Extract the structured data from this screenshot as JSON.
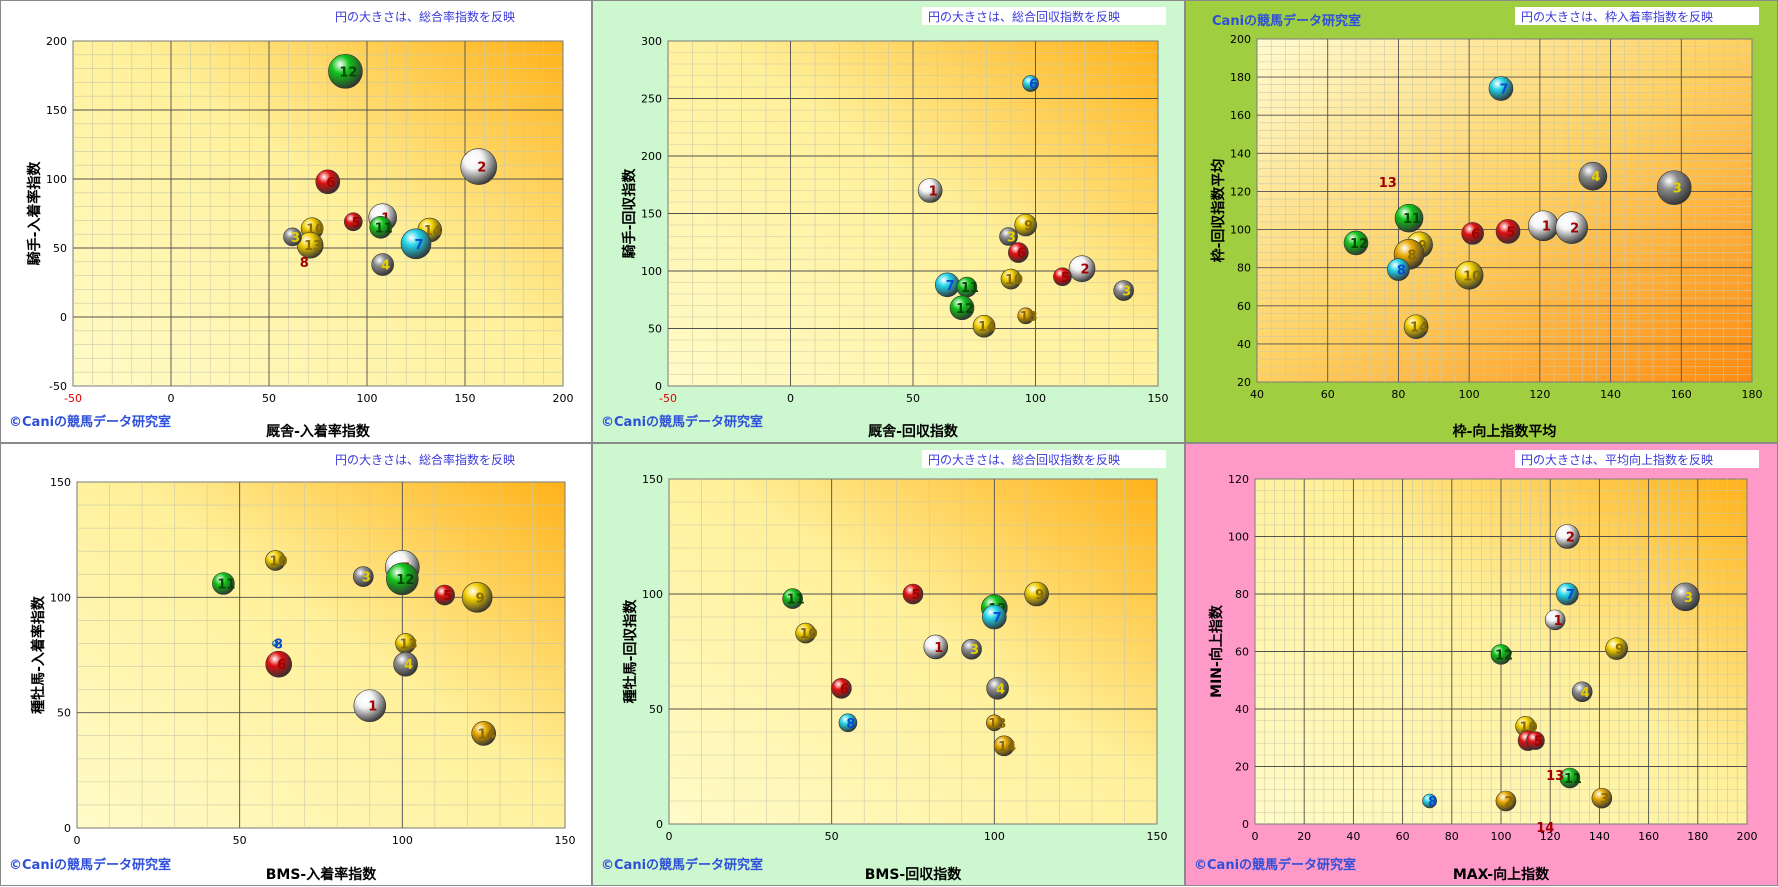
{
  "colors": {
    "red": "#e01010",
    "white": "#f4f4f4",
    "gray": "#8c8c8c",
    "yellow": "#f2cf00",
    "green": "#12c41a",
    "cyan": "#22d3e8",
    "gold": "#e8a800",
    "label_red": "#a00000",
    "label_yellow": "#7a6000",
    "label_white": "#a00000",
    "watermark": "#2e4fd8",
    "note": "#3a3ad8"
  },
  "chart_data": [
    {
      "type": "scatter",
      "title": "",
      "note": "円の大きさは、総合率指数を反映",
      "watermark": "©Caniの競馬データ研究室",
      "xlabel": "厩舎-入着率指数",
      "ylabel": "騎手-入着率指数",
      "xlim": [
        -50,
        200
      ],
      "ylim": [
        -50,
        200
      ],
      "xticks": [
        "-50",
        "0",
        "50",
        "100",
        "150",
        "200"
      ],
      "yticks": [
        "-50",
        "0",
        "50",
        "100",
        "150",
        "200"
      ],
      "grid": true,
      "points": [
        {
          "label": "12",
          "x": 89,
          "y": 178,
          "r": 17,
          "color": "green"
        },
        {
          "label": "2",
          "x": 157,
          "y": 109,
          "r": 18,
          "color": "white"
        },
        {
          "label": "6",
          "x": 80,
          "y": 98,
          "r": 12,
          "color": "red"
        },
        {
          "label": "1",
          "x": 108,
          "y": 72,
          "r": 14,
          "color": "white"
        },
        {
          "label": "5",
          "x": 93,
          "y": 69,
          "r": 9,
          "color": "red"
        },
        {
          "label": "11",
          "x": 107,
          "y": 65,
          "r": 11,
          "color": "green"
        },
        {
          "label": "14",
          "x": 132,
          "y": 63,
          "r": 12,
          "color": "yellow"
        },
        {
          "label": "7",
          "x": 125,
          "y": 53,
          "r": 15,
          "color": "cyan"
        },
        {
          "label": "10",
          "x": 72,
          "y": 64,
          "r": 11,
          "color": "yellow"
        },
        {
          "label": "13",
          "x": 71,
          "y": 52,
          "r": 13,
          "color": "yellow"
        },
        {
          "label": "3",
          "x": 62,
          "y": 58,
          "r": 9,
          "color": "gray"
        },
        {
          "label": "8",
          "x": 68,
          "y": 40,
          "r": 0,
          "color": "red"
        },
        {
          "label": "4",
          "x": 108,
          "y": 38,
          "r": 11,
          "color": "gray"
        }
      ]
    },
    {
      "type": "scatter",
      "title": "",
      "note": "円の大きさは、総合回収指数を反映",
      "watermark": "©Caniの競馬データ研究室",
      "xlabel": "厩舎-回収指数",
      "ylabel": "騎手-回収指数",
      "xlim": [
        -50,
        150
      ],
      "ylim": [
        0,
        300
      ],
      "xticks": [
        "-50",
        "0",
        "50",
        "100",
        "150"
      ],
      "yticks": [
        "0",
        "50",
        "100",
        "150",
        "200",
        "250",
        "300"
      ],
      "grid": true,
      "points": [
        {
          "label": "6",
          "x": 98,
          "y": 263,
          "r": 8,
          "color": "cyan"
        },
        {
          "label": "1",
          "x": 57,
          "y": 170,
          "r": 12,
          "color": "white"
        },
        {
          "label": "9",
          "x": 96,
          "y": 140,
          "r": 11,
          "color": "yellow"
        },
        {
          "label": "3",
          "x": 89,
          "y": 130,
          "r": 9,
          "color": "gray"
        },
        {
          "label": "6",
          "x": 93,
          "y": 116,
          "r": 10,
          "color": "red"
        },
        {
          "label": "2",
          "x": 119,
          "y": 102,
          "r": 13,
          "color": "white"
        },
        {
          "label": "5",
          "x": 111,
          "y": 95,
          "r": 9,
          "color": "red"
        },
        {
          "label": "10",
          "x": 90,
          "y": 93,
          "r": 10,
          "color": "yellow"
        },
        {
          "label": "3",
          "x": 136,
          "y": 83,
          "r": 10,
          "color": "gray"
        },
        {
          "label": "7",
          "x": 64,
          "y": 88,
          "r": 12,
          "color": "cyan"
        },
        {
          "label": "11",
          "x": 72,
          "y": 86,
          "r": 10,
          "color": "green"
        },
        {
          "label": "12",
          "x": 70,
          "y": 68,
          "r": 12,
          "color": "green"
        },
        {
          "label": "13",
          "x": 96,
          "y": 61,
          "r": 8,
          "color": "gold"
        },
        {
          "label": "14",
          "x": 79,
          "y": 52,
          "r": 11,
          "color": "yellow"
        }
      ]
    },
    {
      "type": "scatter",
      "title": "",
      "note": "円の大きさは、枠入着率指数を反映",
      "watermark": "Caniの競馬データ研究室",
      "xlabel": "枠-向上指数平均",
      "ylabel": "枠-回収指数平均",
      "xlim": [
        40,
        180
      ],
      "ylim": [
        20,
        200
      ],
      "xticks": [
        "40",
        "60",
        "80",
        "100",
        "120",
        "140",
        "160",
        "180"
      ],
      "yticks": [
        "20",
        "40",
        "60",
        "80",
        "100",
        "120",
        "140",
        "160",
        "180",
        "200"
      ],
      "grid": true,
      "points": [
        {
          "label": "7",
          "x": 109,
          "y": 174,
          "r": 12,
          "color": "cyan"
        },
        {
          "label": "4",
          "x": 135,
          "y": 128,
          "r": 14,
          "color": "gray"
        },
        {
          "label": "3",
          "x": 158,
          "y": 122,
          "r": 17,
          "color": "gray"
        },
        {
          "label": "13",
          "x": 77,
          "y": 125,
          "r": 0,
          "color": "red"
        },
        {
          "label": "11",
          "x": 83,
          "y": 106,
          "r": 14,
          "color": "green"
        },
        {
          "label": "1",
          "x": 121,
          "y": 102,
          "r": 15,
          "color": "white"
        },
        {
          "label": "2",
          "x": 129,
          "y": 101,
          "r": 16,
          "color": "white"
        },
        {
          "label": "5",
          "x": 111,
          "y": 99,
          "r": 12,
          "color": "red"
        },
        {
          "label": "6",
          "x": 101,
          "y": 98,
          "r": 11,
          "color": "red"
        },
        {
          "label": "12",
          "x": 68,
          "y": 93,
          "r": 12,
          "color": "green"
        },
        {
          "label": "9",
          "x": 86,
          "y": 92,
          "r": 13,
          "color": "yellow"
        },
        {
          "label": "8",
          "x": 83,
          "y": 87,
          "r": 15,
          "color": "gold"
        },
        {
          "label": "8",
          "x": 80,
          "y": 79,
          "r": 11,
          "color": "cyan"
        },
        {
          "label": "10",
          "x": 100,
          "y": 76,
          "r": 14,
          "color": "yellow"
        },
        {
          "label": "14",
          "x": 85,
          "y": 49,
          "r": 12,
          "color": "yellow"
        }
      ]
    },
    {
      "type": "scatter",
      "title": "",
      "note": "円の大きさは、総合率指数を反映",
      "watermark": "©Caniの競馬データ研究室",
      "xlabel": "BMS-入着率指数",
      "ylabel": "種牡馬-入着率指数",
      "xlim": [
        0,
        150
      ],
      "ylim": [
        0,
        150
      ],
      "xticks": [
        "0",
        "50",
        "100",
        "150"
      ],
      "yticks": [
        "0",
        "50",
        "100",
        "150"
      ],
      "grid": true,
      "points": [
        {
          "label": "10",
          "x": 61,
          "y": 116,
          "r": 10,
          "color": "yellow"
        },
        {
          "label": "7",
          "x": 100,
          "y": 113,
          "r": 17,
          "color": "white"
        },
        {
          "label": "11",
          "x": 45,
          "y": 106,
          "r": 11,
          "color": "green"
        },
        {
          "label": "3",
          "x": 88,
          "y": 109,
          "r": 10,
          "color": "gray"
        },
        {
          "label": "12",
          "x": 100,
          "y": 108,
          "r": 16,
          "color": "green"
        },
        {
          "label": "5",
          "x": 113,
          "y": 101,
          "r": 10,
          "color": "red"
        },
        {
          "label": "9",
          "x": 123,
          "y": 100,
          "r": 15,
          "color": "yellow"
        },
        {
          "label": "8",
          "x": 61,
          "y": 80,
          "r": 3,
          "color": "cyan"
        },
        {
          "label": "13",
          "x": 101,
          "y": 80,
          "r": 10,
          "color": "yellow"
        },
        {
          "label": "6",
          "x": 62,
          "y": 71,
          "r": 13,
          "color": "red"
        },
        {
          "label": "4",
          "x": 101,
          "y": 71,
          "r": 12,
          "color": "gray"
        },
        {
          "label": "1",
          "x": 90,
          "y": 53,
          "r": 16,
          "color": "white"
        },
        {
          "label": "14",
          "x": 125,
          "y": 41,
          "r": 12,
          "color": "gold"
        }
      ]
    },
    {
      "type": "scatter",
      "title": "",
      "note": "円の大きさは、総合回収指数を反映",
      "watermark": "©Caniの競馬データ研究室",
      "xlabel": "BMS-回収指数",
      "ylabel": "種牡馬-回収指数",
      "xlim": [
        0,
        150
      ],
      "ylim": [
        0,
        150
      ],
      "xticks": [
        "0",
        "50",
        "100",
        "150"
      ],
      "yticks": [
        "0",
        "50",
        "100",
        "150"
      ],
      "grid": true,
      "points": [
        {
          "label": "9",
          "x": 113,
          "y": 100,
          "r": 12,
          "color": "yellow"
        },
        {
          "label": "5",
          "x": 75,
          "y": 100,
          "r": 10,
          "color": "red"
        },
        {
          "label": "11",
          "x": 38,
          "y": 98,
          "r": 10,
          "color": "green"
        },
        {
          "label": "12",
          "x": 100,
          "y": 94,
          "r": 13,
          "color": "green"
        },
        {
          "label": "7",
          "x": 100,
          "y": 90,
          "r": 12,
          "color": "cyan"
        },
        {
          "label": "10",
          "x": 42,
          "y": 83,
          "r": 10,
          "color": "yellow"
        },
        {
          "label": "1",
          "x": 82,
          "y": 77,
          "r": 12,
          "color": "white"
        },
        {
          "label": "3",
          "x": 93,
          "y": 76,
          "r": 10,
          "color": "gray"
        },
        {
          "label": "6",
          "x": 53,
          "y": 59,
          "r": 10,
          "color": "red"
        },
        {
          "label": "4",
          "x": 101,
          "y": 59,
          "r": 11,
          "color": "gray"
        },
        {
          "label": "8",
          "x": 55,
          "y": 44,
          "r": 9,
          "color": "cyan"
        },
        {
          "label": "13",
          "x": 100,
          "y": 44,
          "r": 8,
          "color": "gold"
        },
        {
          "label": "14",
          "x": 103,
          "y": 34,
          "r": 10,
          "color": "gold"
        }
      ]
    },
    {
      "type": "scatter",
      "title": "",
      "note": "円の大きさは、平均向上指数を反映",
      "watermark": "©Caniの競馬データ研究室",
      "xlabel": "MAX-向上指数",
      "ylabel": "MIN-向上指数",
      "xlim": [
        0,
        200
      ],
      "ylim": [
        0,
        120
      ],
      "xticks": [
        "0",
        "20",
        "40",
        "60",
        "80",
        "100",
        "120",
        "140",
        "160",
        "180",
        "200"
      ],
      "yticks": [
        "0",
        "20",
        "40",
        "60",
        "80",
        "100",
        "120"
      ],
      "grid": true,
      "points": [
        {
          "label": "2",
          "x": 127,
          "y": 100,
          "r": 12,
          "color": "white"
        },
        {
          "label": "7",
          "x": 127,
          "y": 80,
          "r": 11,
          "color": "cyan"
        },
        {
          "label": "3",
          "x": 175,
          "y": 79,
          "r": 14,
          "color": "gray"
        },
        {
          "label": "1",
          "x": 122,
          "y": 71,
          "r": 10,
          "color": "white"
        },
        {
          "label": "9",
          "x": 147,
          "y": 61,
          "r": 11,
          "color": "yellow"
        },
        {
          "label": "12",
          "x": 100,
          "y": 59,
          "r": 10,
          "color": "green"
        },
        {
          "label": "4",
          "x": 133,
          "y": 46,
          "r": 10,
          "color": "gray"
        },
        {
          "label": "10",
          "x": 110,
          "y": 34,
          "r": 10,
          "color": "yellow"
        },
        {
          "label": "6",
          "x": 111,
          "y": 29,
          "r": 10,
          "color": "red"
        },
        {
          "label": "5",
          "x": 114,
          "y": 29,
          "r": 9,
          "color": "red"
        },
        {
          "label": "11",
          "x": 128,
          "y": 16,
          "r": 10,
          "color": "green"
        },
        {
          "label": "13",
          "x": 122,
          "y": 17,
          "r": 0,
          "color": "red"
        },
        {
          "label": "8",
          "x": 71,
          "y": 8,
          "r": 7,
          "color": "cyan"
        },
        {
          "label": "2",
          "x": 102,
          "y": 8,
          "r": 10,
          "color": "gold"
        },
        {
          "label": "3",
          "x": 141,
          "y": 9,
          "r": 10,
          "color": "gold"
        },
        {
          "label": "14",
          "x": 118,
          "y": -1,
          "r": 0,
          "color": "red"
        }
      ]
    }
  ]
}
